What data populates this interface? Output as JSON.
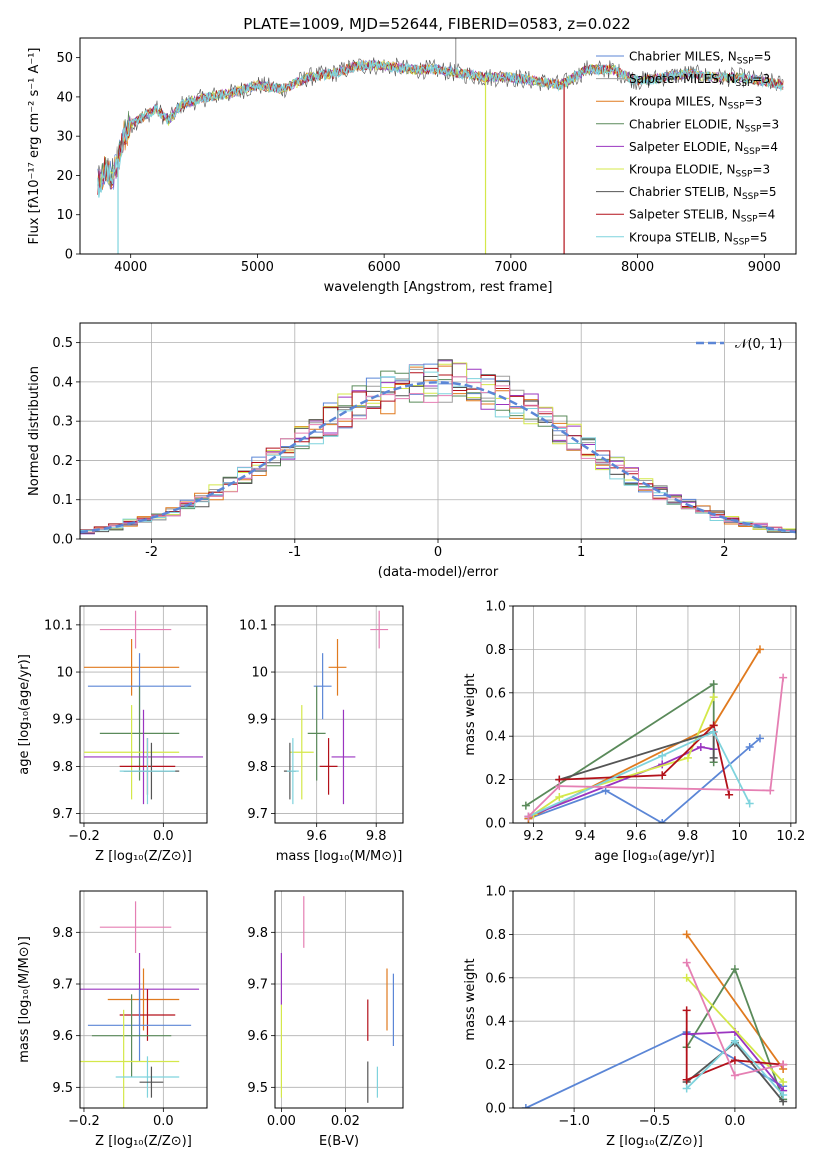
{
  "page_title": "PLATE=1009, MJD=52644, FIBERID=0583, z=0.022",
  "colors": {
    "chabrier_miles": "#5b86d6",
    "salpeter_miles": "#9e9e9e",
    "kroupa_miles": "#e07a1f",
    "chabrier_elodie": "#5a8a5a",
    "salpeter_elodie": "#9a35c0",
    "kroupa_elodie": "#d4e84a",
    "chabrier_stelib": "#555555",
    "salpeter_stelib": "#b3111a",
    "kroupa_stelib": "#7fd3dd",
    "pink": "#e57fb3",
    "gauss": "#5b86d6"
  },
  "chart_data": [
    {
      "id": "spectrum",
      "type": "line",
      "title": "PLATE=1009, MJD=52644, FIBERID=0583, z=0.022",
      "xlabel": "wavelength [Angstrom, rest frame]",
      "ylabel": "Flux [fλ10⁻¹⁷ erg cm⁻² s⁻¹ A⁻¹]",
      "xlim": [
        3600,
        9250
      ],
      "ylim": [
        0,
        55
      ],
      "xticks": [
        4000,
        5000,
        6000,
        7000,
        8000,
        9000
      ],
      "yticks": [
        0,
        10,
        20,
        30,
        40,
        50
      ],
      "grid": false,
      "legend_position": "top-right",
      "legend": [
        {
          "label": "Chabrier MILES, N",
          "sub": "SSP",
          "tail": "=5",
          "color": "chabrier_miles"
        },
        {
          "label": "Salpeter MILES, N",
          "sub": "SSP",
          "tail": "=3",
          "color": "salpeter_miles"
        },
        {
          "label": "Kroupa MILES, N",
          "sub": "SSP",
          "tail": "=3",
          "color": "kroupa_miles"
        },
        {
          "label": "Chabrier ELODIE, N",
          "sub": "SSP",
          "tail": "=3",
          "color": "chabrier_elodie"
        },
        {
          "label": "Salpeter ELODIE, N",
          "sub": "SSP",
          "tail": "=4",
          "color": "salpeter_elodie"
        },
        {
          "label": "Kroupa ELODIE, N",
          "sub": "SSP",
          "tail": "=3",
          "color": "kroupa_elodie"
        },
        {
          "label": "Chabrier STELIB, N",
          "sub": "SSP",
          "tail": "=5",
          "color": "chabrier_stelib"
        },
        {
          "label": "Salpeter STELIB, N",
          "sub": "SSP",
          "tail": "=4",
          "color": "salpeter_stelib"
        },
        {
          "label": "Kroupa STELIB, N",
          "sub": "SSP",
          "tail": "=5",
          "color": "kroupa_stelib"
        }
      ],
      "continuum": [
        [
          3740,
          18
        ],
        [
          3800,
          21
        ],
        [
          3850,
          19
        ],
        [
          3880,
          22
        ],
        [
          3950,
          30
        ],
        [
          4000,
          33
        ],
        [
          4100,
          35
        ],
        [
          4200,
          37
        ],
        [
          4300,
          34
        ],
        [
          4400,
          38
        ],
        [
          4600,
          40
        ],
        [
          4800,
          41
        ],
        [
          5000,
          43
        ],
        [
          5200,
          42
        ],
        [
          5400,
          45
        ],
        [
          5600,
          46
        ],
        [
          5800,
          48
        ],
        [
          6000,
          48
        ],
        [
          6200,
          47
        ],
        [
          6400,
          47
        ],
        [
          6600,
          46
        ],
        [
          6800,
          45
        ],
        [
          7000,
          45
        ],
        [
          7200,
          44
        ],
        [
          7400,
          43
        ],
        [
          7600,
          47
        ],
        [
          7800,
          47
        ],
        [
          8000,
          44
        ],
        [
          8200,
          45
        ],
        [
          8400,
          46
        ],
        [
          8600,
          45
        ],
        [
          8800,
          45
        ],
        [
          9000,
          44
        ],
        [
          9150,
          43
        ]
      ],
      "features": [
        {
          "x": 3900,
          "y": 0,
          "color": "kroupa_stelib"
        },
        {
          "x": 6800,
          "y": 0,
          "color": "kroupa_elodie"
        },
        {
          "x": 7420,
          "y": 0,
          "color": "salpeter_stelib"
        },
        {
          "x": 6565,
          "y": 55,
          "color": "salpeter_miles"
        }
      ]
    },
    {
      "id": "residuals",
      "type": "histogram",
      "xlabel": "(data-model)/error",
      "ylabel": "Normed distribution",
      "xlim": [
        -2.5,
        2.5
      ],
      "ylim": [
        0,
        0.55
      ],
      "xticks": [
        -2,
        -1,
        0,
        1,
        2
      ],
      "yticks": [
        0.0,
        0.1,
        0.2,
        0.3,
        0.4,
        0.5
      ],
      "grid": true,
      "legend_position": "top-right",
      "legend": [
        {
          "label": "𝒩(0, 1)",
          "color": "gauss",
          "dashed": true
        }
      ],
      "bin_width": 0.1,
      "series_colors": [
        "chabrier_miles",
        "salpeter_miles",
        "kroupa_miles",
        "chabrier_elodie",
        "salpeter_elodie",
        "kroupa_elodie",
        "chabrier_stelib",
        "salpeter_stelib",
        "kroupa_stelib",
        "pink"
      ]
    },
    {
      "id": "age_vs_Z",
      "type": "errorbar",
      "xlabel": "Z [log₁₀(Z/Z⊙)]",
      "ylabel": "age  [log₁₀(age/yr)]",
      "xlim": [
        -0.21,
        0.11
      ],
      "ylim": [
        9.68,
        10.14
      ],
      "xticks": [
        -0.2,
        0.0
      ],
      "xticklabels": [
        "−0.2",
        "0.0"
      ],
      "yticks": [
        9.7,
        9.8,
        9.9,
        10.0,
        10.1
      ],
      "grid": true,
      "points": [
        {
          "x": -0.07,
          "y": 10.09,
          "xerr": 0.09,
          "yerr": 0.04,
          "color": "pink"
        },
        {
          "x": -0.08,
          "y": 10.01,
          "xerr": 0.12,
          "yerr": 0.06,
          "color": "kroupa_miles"
        },
        {
          "x": -0.06,
          "y": 9.97,
          "xerr": 0.13,
          "yerr": 0.07,
          "color": "chabrier_miles"
        },
        {
          "x": -0.06,
          "y": 9.87,
          "xerr": 0.1,
          "yerr": 0.1,
          "color": "chabrier_elodie"
        },
        {
          "x": -0.08,
          "y": 9.83,
          "xerr": 0.12,
          "yerr": 0.1,
          "color": "kroupa_elodie"
        },
        {
          "x": -0.05,
          "y": 9.82,
          "xerr": 0.15,
          "yerr": 0.1,
          "color": "salpeter_elodie"
        },
        {
          "x": -0.04,
          "y": 9.8,
          "xerr": 0.07,
          "yerr": 0.06,
          "color": "salpeter_stelib"
        },
        {
          "x": -0.03,
          "y": 9.79,
          "xerr": 0.07,
          "yerr": 0.06,
          "color": "chabrier_stelib"
        },
        {
          "x": -0.04,
          "y": 9.79,
          "xerr": 0.07,
          "yerr": 0.07,
          "color": "kroupa_stelib"
        }
      ]
    },
    {
      "id": "age_vs_mass",
      "type": "errorbar",
      "xlabel": "mass [log₁₀(M/M⊙)]",
      "ylabel": "",
      "xlim": [
        9.46,
        9.89
      ],
      "ylim": [
        9.68,
        10.14
      ],
      "xticks": [
        9.6,
        9.8
      ],
      "yticks": [
        9.7,
        9.8,
        9.9,
        10.0,
        10.1
      ],
      "grid": true,
      "points": [
        {
          "x": 9.81,
          "y": 10.09,
          "xerr": 0.03,
          "yerr": 0.04,
          "color": "pink"
        },
        {
          "x": 9.67,
          "y": 10.01,
          "xerr": 0.03,
          "yerr": 0.06,
          "color": "kroupa_miles"
        },
        {
          "x": 9.62,
          "y": 9.97,
          "xerr": 0.03,
          "yerr": 0.07,
          "color": "chabrier_miles"
        },
        {
          "x": 9.6,
          "y": 9.87,
          "xerr": 0.03,
          "yerr": 0.1,
          "color": "chabrier_elodie"
        },
        {
          "x": 9.55,
          "y": 9.83,
          "xerr": 0.04,
          "yerr": 0.1,
          "color": "kroupa_elodie"
        },
        {
          "x": 9.69,
          "y": 9.82,
          "xerr": 0.04,
          "yerr": 0.1,
          "color": "salpeter_elodie"
        },
        {
          "x": 9.64,
          "y": 9.8,
          "xerr": 0.03,
          "yerr": 0.06,
          "color": "salpeter_stelib"
        },
        {
          "x": 9.51,
          "y": 9.79,
          "xerr": 0.02,
          "yerr": 0.06,
          "color": "chabrier_stelib"
        },
        {
          "x": 9.52,
          "y": 9.79,
          "xerr": 0.02,
          "yerr": 0.07,
          "color": "kroupa_stelib"
        }
      ]
    },
    {
      "id": "weight_vs_age",
      "type": "line",
      "xlabel": "age  [log₁₀(age/yr)]",
      "ylabel": "mass weight",
      "xlim": [
        9.12,
        10.22
      ],
      "ylim": [
        0.0,
        1.0
      ],
      "xticks": [
        9.2,
        9.4,
        9.6,
        9.8,
        10.0,
        10.2
      ],
      "yticks": [
        0.0,
        0.2,
        0.4,
        0.6,
        0.8,
        1.0
      ],
      "grid": true,
      "series": [
        {
          "color": "chabrier_miles",
          "points": [
            [
              9.18,
              0.02
            ],
            [
              9.48,
              0.15
            ],
            [
              9.7,
              0.0
            ],
            [
              10.04,
              0.35
            ],
            [
              10.08,
              0.39
            ]
          ]
        },
        {
          "color": "kroupa_miles",
          "points": [
            [
              9.18,
              0.02
            ],
            [
              9.9,
              0.45
            ],
            [
              10.08,
              0.8
            ]
          ]
        },
        {
          "color": "chabrier_elodie",
          "points": [
            [
              9.17,
              0.08
            ],
            [
              9.9,
              0.64
            ],
            [
              9.9,
              0.28
            ]
          ]
        },
        {
          "color": "salpeter_elodie",
          "points": [
            [
              9.18,
              0.03
            ],
            [
              9.7,
              0.27
            ],
            [
              9.85,
              0.35
            ],
            [
              9.9,
              0.34
            ]
          ]
        },
        {
          "color": "kroupa_elodie",
          "points": [
            [
              9.2,
              0.04
            ],
            [
              9.3,
              0.12
            ],
            [
              9.8,
              0.3
            ],
            [
              9.9,
              0.58
            ]
          ]
        },
        {
          "color": "chabrier_stelib",
          "points": [
            [
              9.3,
              0.2
            ],
            [
              9.9,
              0.42
            ],
            [
              9.9,
              0.3
            ]
          ]
        },
        {
          "color": "salpeter_stelib",
          "points": [
            [
              9.3,
              0.2
            ],
            [
              9.7,
              0.22
            ],
            [
              9.9,
              0.45
            ],
            [
              9.96,
              0.13
            ]
          ]
        },
        {
          "color": "kroupa_stelib",
          "points": [
            [
              9.18,
              0.03
            ],
            [
              9.7,
              0.31
            ],
            [
              9.9,
              0.42
            ],
            [
              10.04,
              0.09
            ]
          ]
        },
        {
          "color": "pink",
          "points": [
            [
              9.18,
              0.03
            ],
            [
              9.3,
              0.17
            ],
            [
              10.12,
              0.15
            ],
            [
              10.17,
              0.67
            ]
          ]
        }
      ]
    },
    {
      "id": "mass_vs_Z",
      "type": "errorbar",
      "xlabel": "Z [log₁₀(Z/Z⊙)]",
      "ylabel": "mass [log₁₀(M/M⊙)]",
      "xlim": [
        -0.21,
        0.11
      ],
      "ylim": [
        9.46,
        9.88
      ],
      "xticks": [
        -0.2,
        0.0
      ],
      "xticklabels": [
        "−0.2",
        "0.0"
      ],
      "yticks": [
        9.5,
        9.6,
        9.7,
        9.8
      ],
      "grid": true,
      "points": [
        {
          "x": -0.07,
          "y": 9.81,
          "xerr": 0.09,
          "yerr": 0.05,
          "color": "pink"
        },
        {
          "x": -0.06,
          "y": 9.69,
          "xerr": 0.15,
          "yerr": 0.07,
          "color": "salpeter_elodie"
        },
        {
          "x": -0.05,
          "y": 9.67,
          "xerr": 0.09,
          "yerr": 0.06,
          "color": "kroupa_miles"
        },
        {
          "x": -0.04,
          "y": 9.64,
          "xerr": 0.07,
          "yerr": 0.05,
          "color": "salpeter_stelib"
        },
        {
          "x": -0.06,
          "y": 9.62,
          "xerr": 0.13,
          "yerr": 0.07,
          "color": "chabrier_miles"
        },
        {
          "x": -0.08,
          "y": 9.6,
          "xerr": 0.1,
          "yerr": 0.08,
          "color": "chabrier_elodie"
        },
        {
          "x": -0.1,
          "y": 9.55,
          "xerr": 0.14,
          "yerr": 0.1,
          "color": "kroupa_elodie"
        },
        {
          "x": -0.04,
          "y": 9.52,
          "xerr": 0.08,
          "yerr": 0.04,
          "color": "kroupa_stelib"
        },
        {
          "x": -0.03,
          "y": 9.51,
          "xerr": 0.03,
          "yerr": 0.03,
          "color": "chabrier_stelib"
        }
      ]
    },
    {
      "id": "mass_vs_ebv",
      "type": "errorbar",
      "xlabel": "E(B-V)",
      "ylabel": "",
      "xlim": [
        -0.002,
        0.038
      ],
      "ylim": [
        9.46,
        9.88
      ],
      "xticks": [
        0.0,
        0.02
      ],
      "xticklabels": [
        "0.00",
        "0.02"
      ],
      "yticks": [
        9.5,
        9.6,
        9.7,
        9.8
      ],
      "grid": true,
      "points": [
        {
          "x": 0.007,
          "y": 9.82,
          "xerr": 0,
          "yerr": 0.05,
          "color": "pink"
        },
        {
          "x": 0.0,
          "y": 9.71,
          "xerr": 0,
          "yerr": 0.05,
          "color": "salpeter_elodie"
        },
        {
          "x": 0.033,
          "y": 9.67,
          "xerr": 0,
          "yerr": 0.06,
          "color": "kroupa_miles"
        },
        {
          "x": 0.027,
          "y": 9.63,
          "xerr": 0,
          "yerr": 0.04,
          "color": "salpeter_stelib"
        },
        {
          "x": 0.035,
          "y": 9.65,
          "xerr": 0,
          "yerr": 0.07,
          "color": "chabrier_miles"
        },
        {
          "x": 0.03,
          "y": 9.51,
          "xerr": 0,
          "yerr": 0.03,
          "color": "kroupa_stelib"
        },
        {
          "x": 0.027,
          "y": 9.51,
          "xerr": 0,
          "yerr": 0.04,
          "color": "chabrier_stelib"
        },
        {
          "x": 0.0,
          "y": 9.57,
          "xerr": 0,
          "yerr": 0.09,
          "color": "kroupa_elodie"
        }
      ]
    },
    {
      "id": "weight_vs_Z",
      "type": "line",
      "xlabel": "Z [log₁₀(Z/Z⊙)]",
      "ylabel": "mass weight",
      "xlim": [
        -1.38,
        0.38
      ],
      "ylim": [
        0.0,
        1.0
      ],
      "xticks": [
        -1.0,
        -0.5,
        0.0
      ],
      "xticklabels": [
        "−1.0",
        "−0.5",
        "0.0"
      ],
      "yticks": [
        0.0,
        0.2,
        0.4,
        0.6,
        0.8,
        1.0
      ],
      "grid": true,
      "series": [
        {
          "color": "chabrier_miles",
          "points": [
            [
              -1.3,
              0.0
            ],
            [
              -0.3,
              0.35
            ],
            [
              0.3,
              0.1
            ]
          ]
        },
        {
          "color": "kroupa_miles",
          "points": [
            [
              -0.3,
              0.8
            ],
            [
              0.3,
              0.18
            ]
          ]
        },
        {
          "color": "chabrier_elodie",
          "points": [
            [
              -0.3,
              0.28
            ],
            [
              0.0,
              0.64
            ],
            [
              0.3,
              0.04
            ]
          ]
        },
        {
          "color": "salpeter_elodie",
          "points": [
            [
              -0.3,
              0.34
            ],
            [
              0.0,
              0.35
            ],
            [
              0.3,
              0.08
            ]
          ]
        },
        {
          "color": "kroupa_elodie",
          "points": [
            [
              -0.3,
              0.6
            ],
            [
              0.3,
              0.12
            ]
          ]
        },
        {
          "color": "chabrier_stelib",
          "points": [
            [
              -0.3,
              0.12
            ],
            [
              0.0,
              0.3
            ],
            [
              0.3,
              0.03
            ]
          ]
        },
        {
          "color": "salpeter_stelib",
          "points": [
            [
              -0.3,
              0.45
            ],
            [
              -0.3,
              0.13
            ],
            [
              0.0,
              0.22
            ],
            [
              0.3,
              0.2
            ]
          ]
        },
        {
          "color": "kroupa_stelib",
          "points": [
            [
              -0.3,
              0.09
            ],
            [
              0.0,
              0.31
            ],
            [
              0.3,
              0.06
            ]
          ]
        },
        {
          "color": "pink",
          "points": [
            [
              -0.3,
              0.67
            ],
            [
              0.0,
              0.15
            ],
            [
              0.3,
              0.2
            ]
          ]
        }
      ]
    }
  ]
}
